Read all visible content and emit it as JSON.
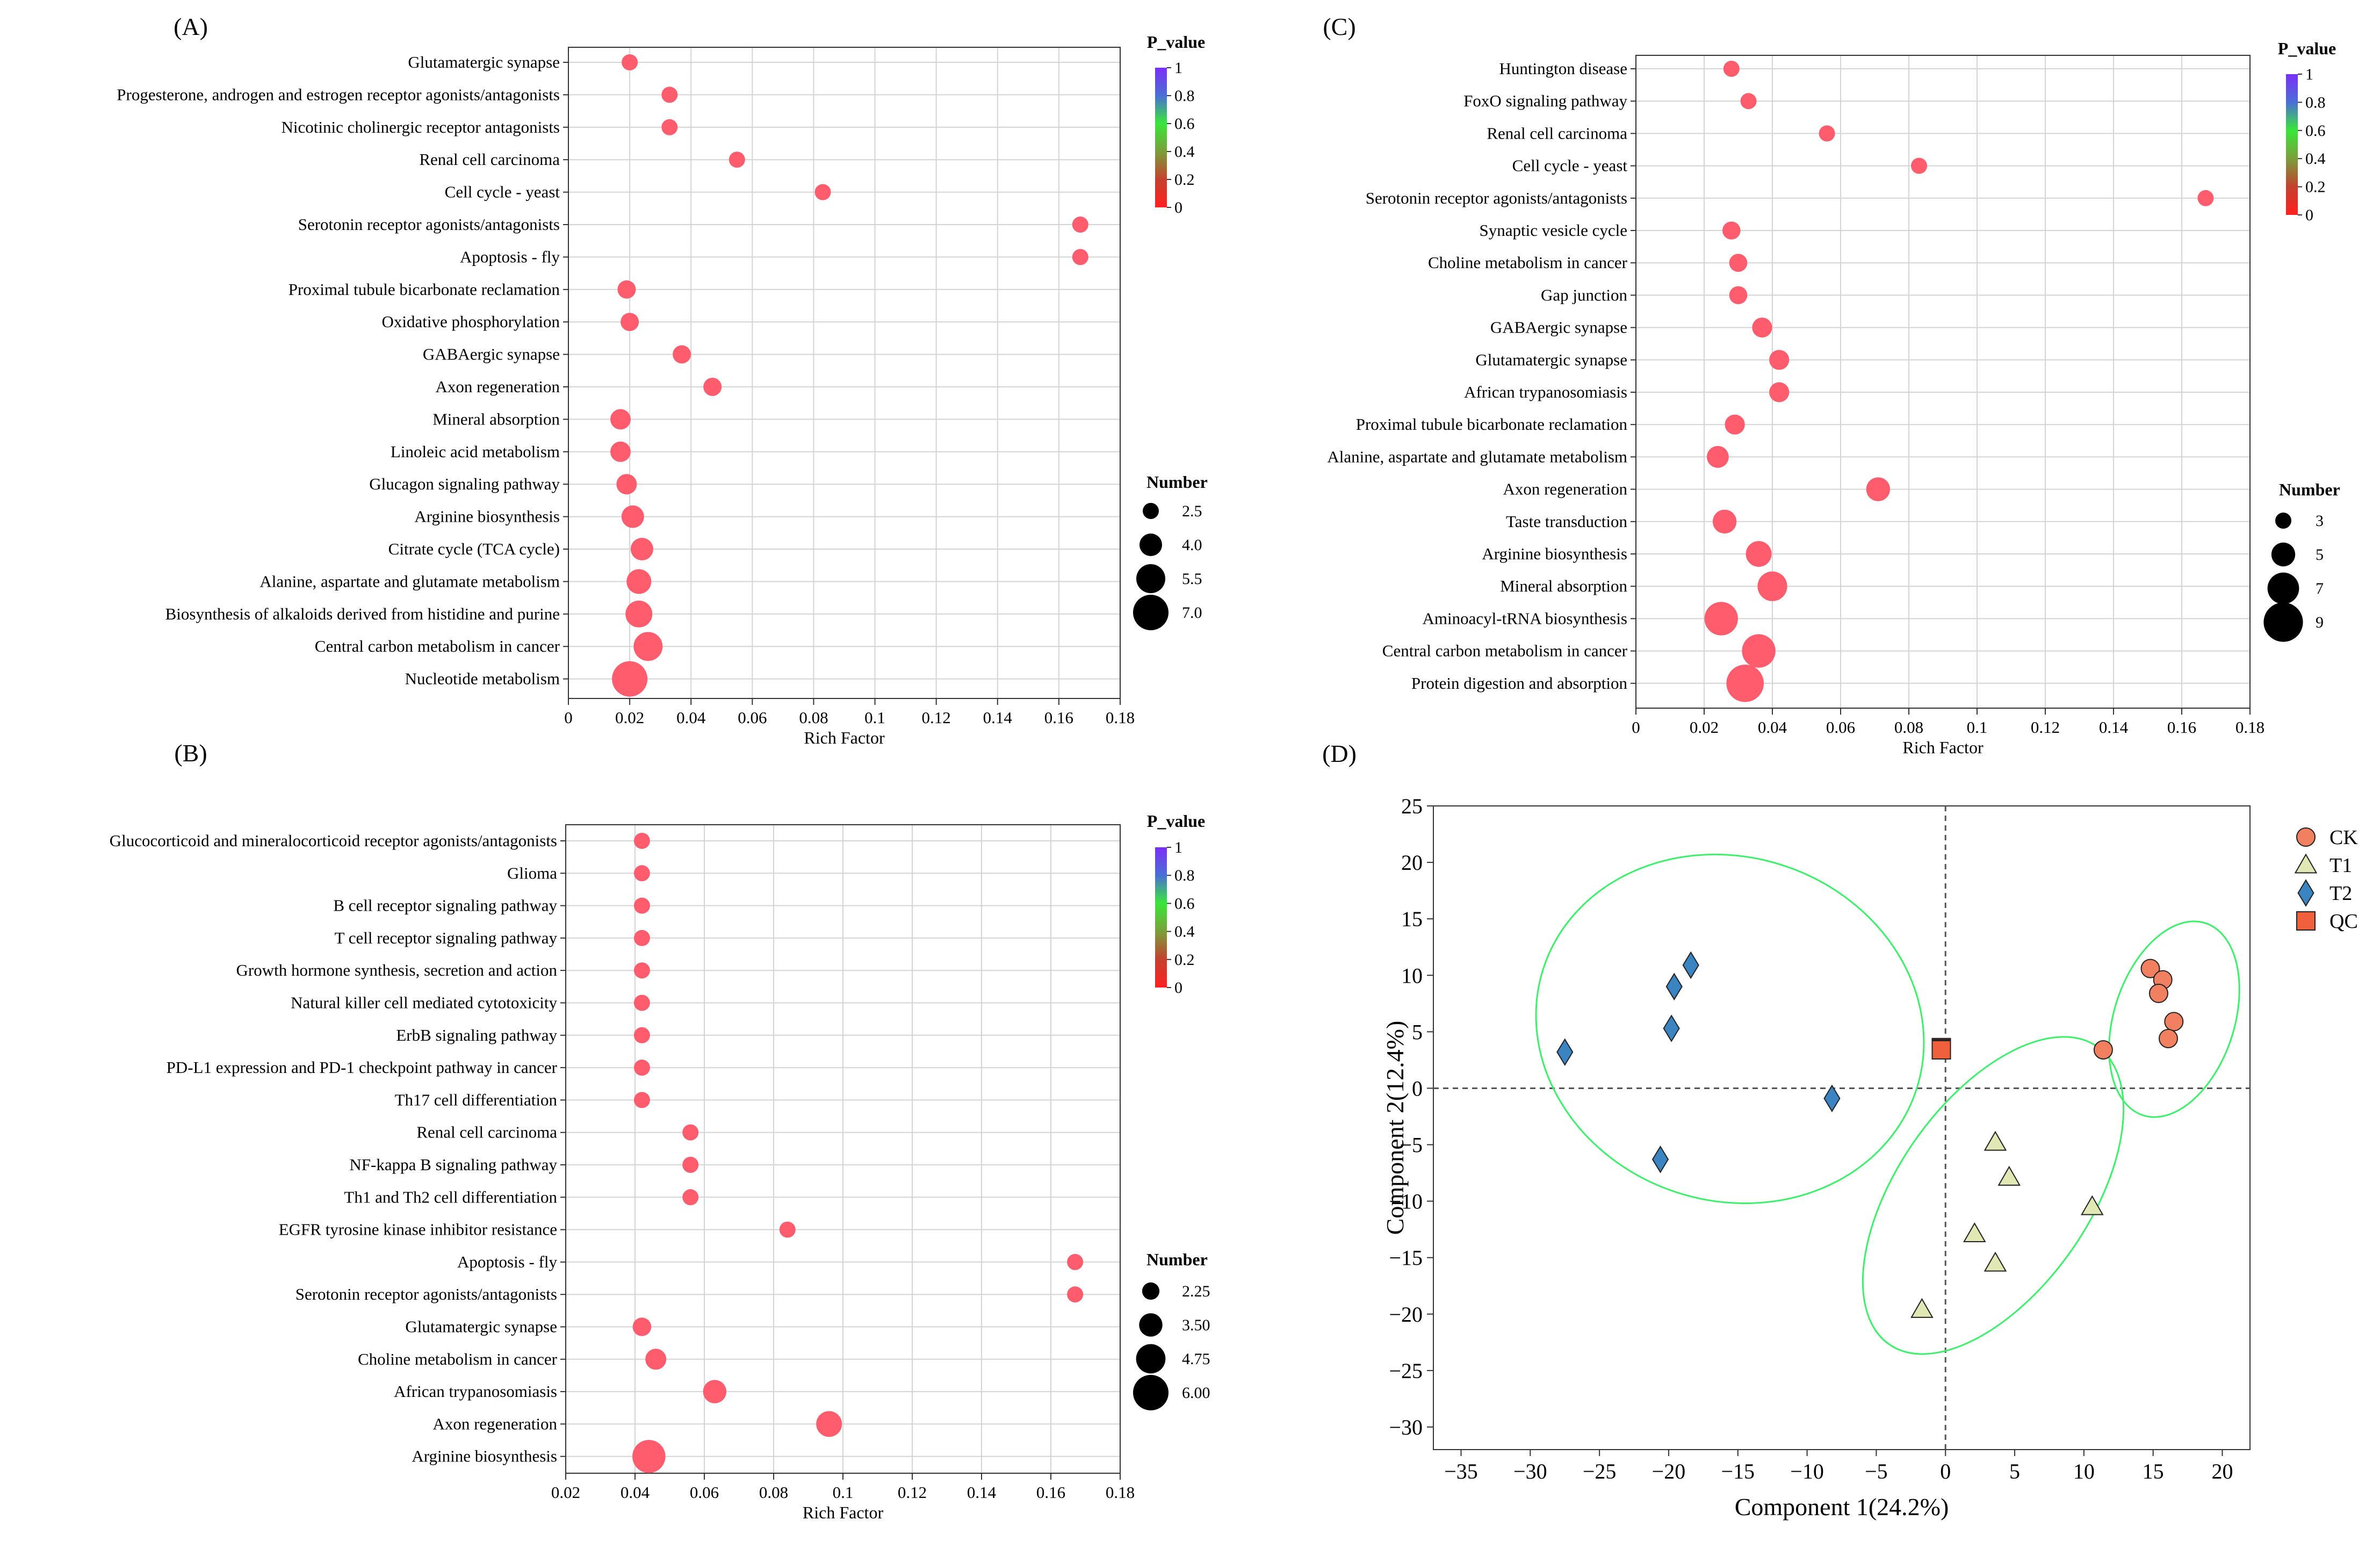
{
  "chart_data": [
    {
      "id": "A",
      "type": "scatter",
      "subtype": "bubble",
      "panel_label": "(A)",
      "title": "",
      "xlabel": "Rich Factor",
      "ylabel": "",
      "xlim": [
        0,
        0.18
      ],
      "xticks": [
        0,
        0.02,
        0.04,
        0.06,
        0.08,
        0.1,
        0.12,
        0.14,
        0.16,
        0.18
      ],
      "grid": true,
      "color_legend": {
        "title": "P_value",
        "ticks": [
          "1",
          "0.8",
          "0.6",
          "0.4",
          "0.2",
          "0"
        ],
        "colors": [
          "#7b2ff7",
          "#4a6fd6",
          "#39e639",
          "#7a9f3a",
          "#c4412f",
          "#ff2020"
        ]
      },
      "size_legend": {
        "title": "Number",
        "values": [
          "2.5",
          "4.0",
          "5.5",
          "7.0"
        ]
      },
      "point_color": "#ff5c6e",
      "categories": [
        "Glutamatergic synapse",
        "Progesterone, androgen and estrogen receptor agonists/antagonists",
        "Nicotinic cholinergic receptor antagonists",
        "Renal cell carcinoma",
        "Cell cycle - yeast",
        "Serotonin receptor agonists/antagonists",
        "Apoptosis - fly",
        "Proximal tubule bicarbonate reclamation",
        "Oxidative phosphorylation",
        "GABAergic synapse",
        "Axon regeneration",
        "Mineral absorption",
        "Linoleic acid metabolism",
        "Glucagon signaling pathway",
        "Arginine biosynthesis",
        "Citrate cycle (TCA cycle)",
        "Alanine, aspartate and glutamate metabolism",
        "Biosynthesis of alkaloids derived from histidine and purine",
        "Central carbon metabolism in cancer",
        "Nucleotide metabolism"
      ],
      "x": [
        0.02,
        0.033,
        0.033,
        0.055,
        0.083,
        0.167,
        0.167,
        0.019,
        0.02,
        0.037,
        0.047,
        0.017,
        0.017,
        0.019,
        0.021,
        0.024,
        0.023,
        0.023,
        0.026,
        0.02
      ],
      "number": [
        2.5,
        2.5,
        2.5,
        2.5,
        2.5,
        2.5,
        2.5,
        3.0,
        3.0,
        3.0,
        3.0,
        3.5,
        3.5,
        3.5,
        4.0,
        4.0,
        4.5,
        5.0,
        5.5,
        7.0
      ]
    },
    {
      "id": "B",
      "type": "scatter",
      "subtype": "bubble",
      "panel_label": "(B)",
      "title": "",
      "xlabel": "Rich Factor",
      "ylabel": "",
      "xlim": [
        0.02,
        0.18
      ],
      "xticks": [
        0.02,
        0.04,
        0.06,
        0.08,
        0.1,
        0.12,
        0.14,
        0.16,
        0.18
      ],
      "grid": true,
      "color_legend": {
        "title": "P_value",
        "ticks": [
          "1",
          "0.8",
          "0.6",
          "0.4",
          "0.2",
          "0"
        ],
        "colors": [
          "#7b2ff7",
          "#4a6fd6",
          "#39e639",
          "#7a9f3a",
          "#c4412f",
          "#ff2020"
        ]
      },
      "size_legend": {
        "title": "Number",
        "values": [
          "2.25",
          "3.50",
          "4.75",
          "6.00"
        ]
      },
      "point_color": "#ff5c6e",
      "categories": [
        "Glucocorticoid and mineralocorticoid receptor agonists/antagonists",
        "Glioma",
        "B cell receptor signaling pathway",
        "T cell receptor signaling pathway",
        "Growth hormone synthesis, secretion and action",
        "Natural killer cell mediated cytotoxicity",
        "ErbB signaling pathway",
        "PD-L1 expression and PD-1 checkpoint pathway in cancer",
        "Th17 cell differentiation",
        "Renal cell carcinoma",
        "NF-kappa B signaling pathway",
        "Th1 and Th2 cell differentiation",
        "EGFR tyrosine kinase inhibitor resistance",
        "Apoptosis - fly",
        "Serotonin receptor agonists/antagonists",
        "Glutamatergic synapse",
        "Choline metabolism in cancer",
        "African trypanosomiasis",
        "Axon regeneration",
        "Arginine biosynthesis"
      ],
      "x": [
        0.042,
        0.042,
        0.042,
        0.042,
        0.042,
        0.042,
        0.042,
        0.042,
        0.042,
        0.056,
        0.056,
        0.056,
        0.084,
        0.167,
        0.167,
        0.042,
        0.046,
        0.063,
        0.096,
        0.044
      ],
      "number": [
        2.0,
        2.0,
        2.0,
        2.0,
        2.0,
        2.0,
        2.0,
        2.0,
        2.0,
        2.0,
        2.0,
        2.0,
        2.0,
        2.0,
        2.0,
        2.5,
        3.0,
        3.5,
        4.0,
        5.5
      ]
    },
    {
      "id": "C",
      "type": "scatter",
      "subtype": "bubble",
      "panel_label": "(C)",
      "title": "",
      "xlabel": "Rich Factor",
      "ylabel": "",
      "xlim": [
        0,
        0.18
      ],
      "xticks": [
        0,
        0.02,
        0.04,
        0.06,
        0.08,
        0.1,
        0.12,
        0.14,
        0.16,
        0.18
      ],
      "grid": true,
      "color_legend": {
        "title": "P_value",
        "ticks": [
          "1",
          "0.8",
          "0.6",
          "0.4",
          "0.2",
          "0"
        ],
        "colors": [
          "#7b2ff7",
          "#4a6fd6",
          "#39e639",
          "#7a9f3a",
          "#c4412f",
          "#ff2020"
        ]
      },
      "size_legend": {
        "title": "Number",
        "values": [
          "3",
          "5",
          "7",
          "9"
        ]
      },
      "point_color": "#ff5c6e",
      "categories": [
        "Huntington disease",
        "FoxO signaling pathway",
        "Renal cell carcinoma",
        "Cell cycle - yeast",
        "Serotonin receptor agonists/antagonists",
        "Synaptic vesicle cycle",
        "Choline metabolism in cancer",
        "Gap junction",
        "GABAergic synapse",
        "Glutamatergic synapse",
        "African trypanosomiasis",
        "Proximal tubule bicarbonate reclamation",
        "Alanine, aspartate and glutamate metabolism",
        "Axon regeneration",
        "Taste transduction",
        "Arginine biosynthesis",
        "Mineral absorption",
        "Aminoacyl-tRNA biosynthesis",
        "Central carbon metabolism in cancer",
        "Protein digestion and absorption"
      ],
      "x": [
        0.028,
        0.033,
        0.056,
        0.083,
        0.167,
        0.028,
        0.03,
        0.03,
        0.037,
        0.042,
        0.042,
        0.029,
        0.024,
        0.071,
        0.026,
        0.036,
        0.04,
        0.025,
        0.036,
        0.032
      ],
      "number": [
        3,
        3,
        3,
        3,
        3,
        3.5,
        3.5,
        3.5,
        4,
        4,
        4,
        4,
        4.5,
        5,
        5,
        5.5,
        6.5,
        7.5,
        7.5,
        8.5
      ]
    },
    {
      "id": "D",
      "type": "scatter",
      "panel_label": "(D)",
      "title": "",
      "xlabel": "Component 1(24.2%)",
      "ylabel": "Component 2(12.4%)",
      "xlim": [
        -37,
        22
      ],
      "ylim": [
        -32,
        25
      ],
      "xticks": [
        -35,
        -30,
        -25,
        -20,
        -15,
        -10,
        -5,
        0,
        5,
        10,
        15,
        20
      ],
      "yticks": [
        25,
        20,
        15,
        10,
        5,
        0,
        -5,
        -10,
        -15,
        -20,
        -25,
        -30
      ],
      "grid": false,
      "legend_position": "top-right",
      "series": [
        {
          "name": "CK",
          "marker": "circle",
          "color": "#f08060",
          "x": [
            14.8,
            15.7,
            15.4,
            16.5,
            16.1,
            11.4
          ],
          "y": [
            10.6,
            9.6,
            8.4,
            5.9,
            4.4,
            3.4
          ]
        },
        {
          "name": "T1",
          "marker": "triangle",
          "color": "#e2e8b4",
          "x": [
            3.6,
            4.6,
            10.6,
            2.1,
            3.6,
            -1.7
          ],
          "y": [
            -4.8,
            -7.9,
            -10.5,
            -12.9,
            -15.5,
            -19.6
          ]
        },
        {
          "name": "T2",
          "marker": "diamond",
          "color": "#3b84c2",
          "x": [
            -18.4,
            -19.6,
            -19.8,
            -27.5,
            -8.2,
            -20.6
          ],
          "y": [
            10.9,
            9.0,
            5.3,
            3.2,
            -0.9,
            -6.3
          ]
        },
        {
          "name": "QC",
          "marker": "square",
          "color": "#f0603c",
          "x": [
            -0.3,
            -0.3,
            -0.3
          ],
          "y": [
            3.6,
            3.5,
            3.4
          ]
        }
      ]
    }
  ]
}
